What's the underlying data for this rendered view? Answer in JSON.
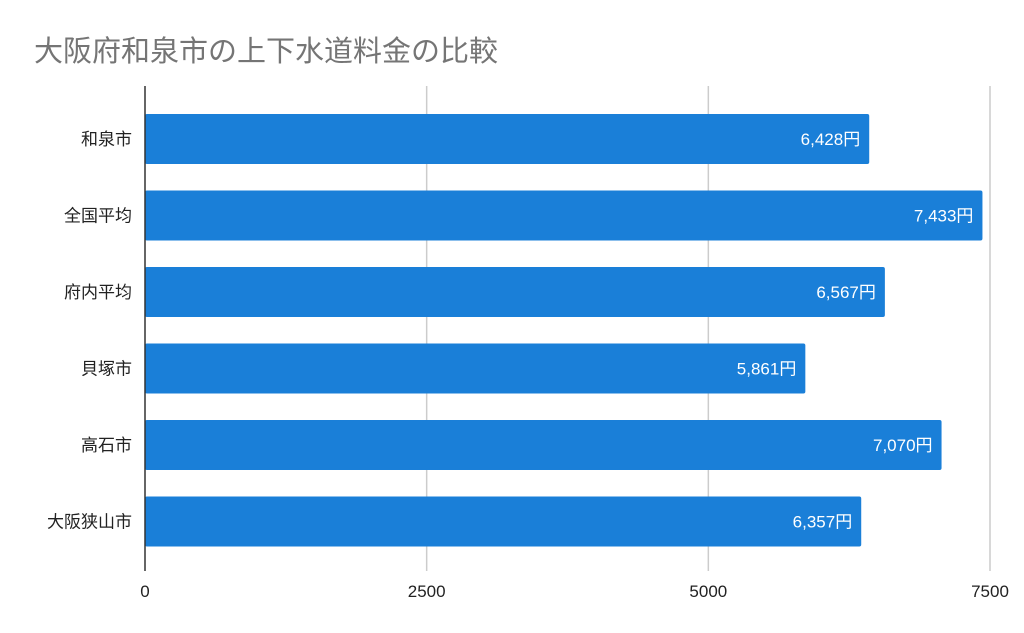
{
  "chart_data": {
    "type": "bar",
    "orientation": "horizontal",
    "title": "大阪府和泉市の上下水道料金の比較",
    "categories": [
      "和泉市",
      "全国平均",
      "府内平均",
      "貝塚市",
      "高石市",
      "大阪狭山市"
    ],
    "values": [
      6428,
      7433,
      6567,
      5861,
      7070,
      6357
    ],
    "value_labels": [
      "6,428円",
      "7,433円",
      "6,567円",
      "5,861円",
      "7,070円",
      "6,357円"
    ],
    "xlim": [
      0,
      7500
    ],
    "xticks": [
      "0",
      "2500",
      "5000",
      "7500"
    ],
    "xtick_values": [
      0,
      2500,
      5000,
      7500
    ],
    "grid": true,
    "bar_color": "#1a7fd8",
    "grid_color": "#cccccc",
    "axis_color": "#333333"
  }
}
